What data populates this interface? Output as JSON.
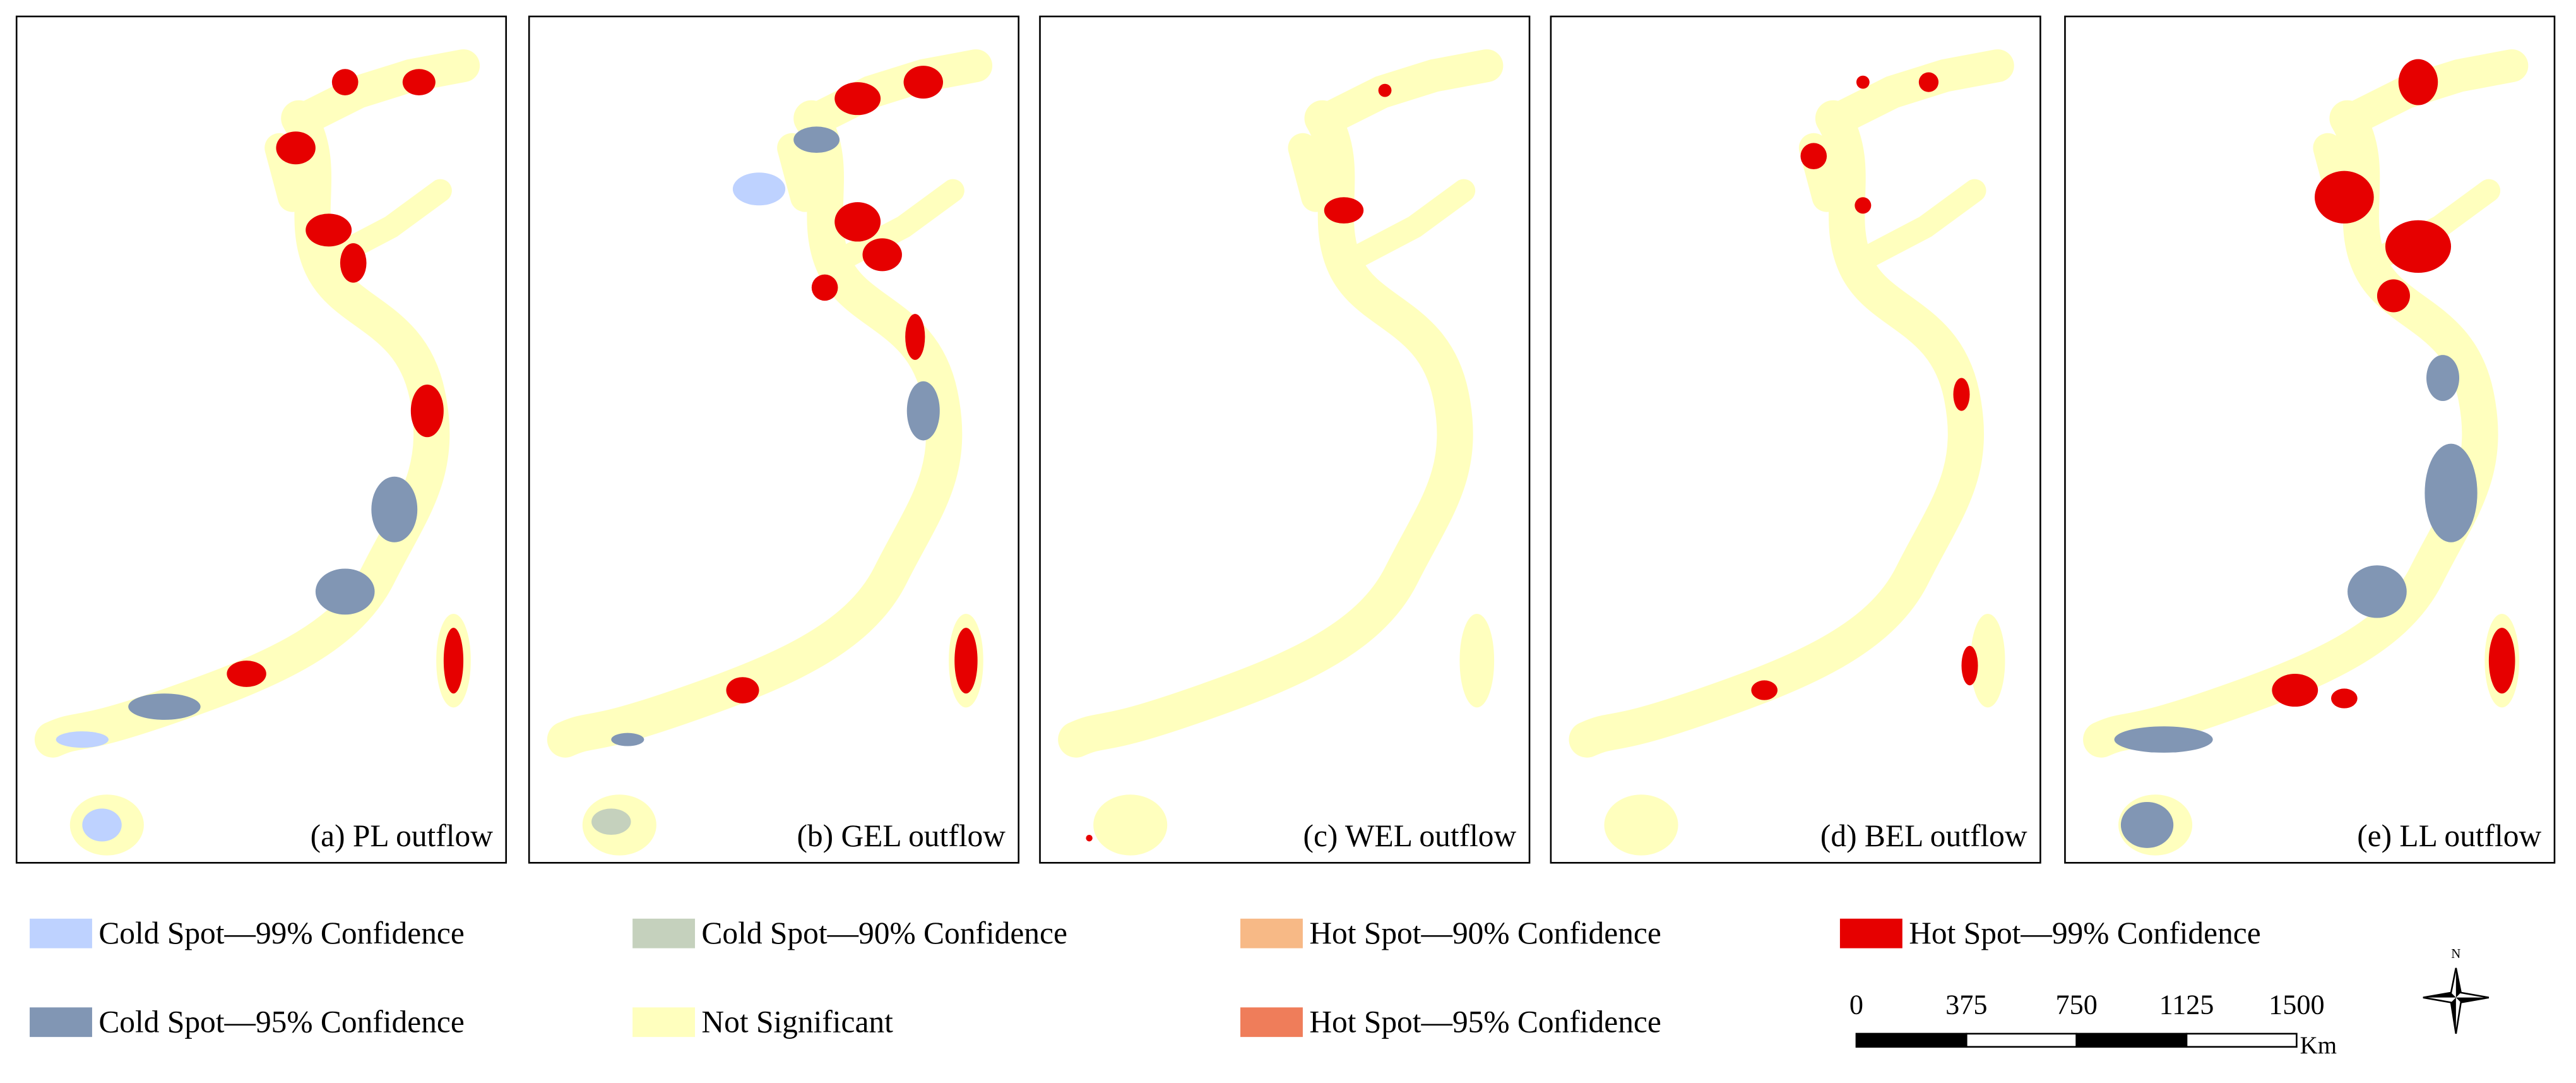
{
  "panels": [
    {
      "label": "(a) PL outflow"
    },
    {
      "label": "(b) GEL outflow"
    },
    {
      "label": "(c) WEL outflow"
    },
    {
      "label": "(d) BEL outflow"
    },
    {
      "label": "(e) LL outflow"
    }
  ],
  "legend": {
    "items": [
      {
        "label": "Cold Spot—99% Confidence",
        "color": "#bed2ff"
      },
      {
        "label": "Cold Spot—90% Confidence",
        "color": "#c5d1bd"
      },
      {
        "label": "Hot Spot—90% Confidence",
        "color": "#f7b986"
      },
      {
        "label": "Hot Spot—99% Confidence",
        "color": "#e60000"
      },
      {
        "label": "Cold Spot—95% Confidence",
        "color": "#8196b4"
      },
      {
        "label": "Not Significant",
        "color": "#ffffbe"
      },
      {
        "label": "Hot Spot—95% Confidence",
        "color": "#ef7d5a"
      }
    ]
  },
  "scale_bar": {
    "ticks": [
      0,
      375,
      750,
      1125,
      1500
    ],
    "unit": "Km"
  },
  "compass": "N"
}
